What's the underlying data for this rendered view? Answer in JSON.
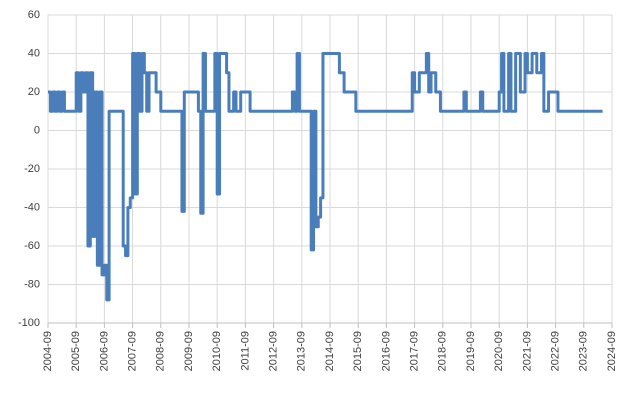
{
  "chart_data": {
    "type": "line",
    "step": "post",
    "grid": true,
    "series": [
      {
        "color": "#4a7ebb",
        "x": [
          "2004-09",
          "2004-10",
          "2004-11",
          "2004-12",
          "2005-01",
          "2005-02",
          "2005-03",
          "2005-04",
          "2005-09",
          "2005-10",
          "2005-11",
          "2005-12",
          "2006-01",
          "2006-02",
          "2006-03",
          "2006-04",
          "2006-05",
          "2006-06",
          "2006-07",
          "2006-08",
          "2006-09",
          "2006-10",
          "2006-11",
          "2007-05",
          "2007-06",
          "2007-07",
          "2007-08",
          "2007-09",
          "2007-10",
          "2007-11",
          "2007-12",
          "2008-01",
          "2008-02",
          "2008-03",
          "2008-04",
          "2008-07",
          "2008-09",
          "2009-06",
          "2009-07",
          "2010-01",
          "2010-02",
          "2010-03",
          "2010-04",
          "2010-08",
          "2010-09",
          "2010-10",
          "2011-01",
          "2011-02",
          "2011-04",
          "2011-05",
          "2011-07",
          "2011-11",
          "2013-05",
          "2013-06",
          "2013-07",
          "2013-08",
          "2014-01",
          "2014-02",
          "2014-03",
          "2014-04",
          "2014-05",
          "2014-06",
          "2015-01",
          "2015-03",
          "2015-08",
          "2017-08",
          "2017-09",
          "2017-11",
          "2018-02",
          "2018-03",
          "2018-04",
          "2018-06",
          "2018-08",
          "2019-06",
          "2019-07",
          "2020-01",
          "2020-02",
          "2020-09",
          "2020-10",
          "2020-11",
          "2021-01",
          "2021-02",
          "2021-04",
          "2021-06",
          "2021-08",
          "2021-09",
          "2021-11",
          "2022-01",
          "2022-03",
          "2022-04",
          "2022-06",
          "2022-10",
          "2024-05"
        ],
        "values": [
          20,
          10,
          20,
          10,
          20,
          10,
          20,
          10,
          30,
          10,
          30,
          20,
          30,
          -60,
          30,
          -55,
          20,
          -70,
          20,
          -75,
          -70,
          -88,
          10,
          -60,
          -65,
          -40,
          -35,
          40,
          -33,
          40,
          10,
          40,
          30,
          10,
          30,
          20,
          10,
          -42,
          20,
          10,
          -43,
          40,
          10,
          40,
          -33,
          40,
          30,
          10,
          20,
          10,
          20,
          10,
          20,
          10,
          40,
          10,
          -62,
          10,
          -50,
          -45,
          -35,
          40,
          30,
          20,
          10,
          30,
          20,
          30,
          40,
          20,
          30,
          20,
          10,
          20,
          10,
          20,
          10,
          20,
          40,
          10,
          40,
          10,
          40,
          20,
          40,
          30,
          40,
          30,
          40,
          10,
          20,
          10,
          10
        ]
      }
    ],
    "ylim": [
      -100,
      60
    ],
    "yticks": [
      -100,
      -80,
      -60,
      -40,
      -20,
      0,
      20,
      40,
      60
    ],
    "xlim": [
      "2004-09",
      "2024-09"
    ],
    "xticks": [
      "2004-09",
      "2005-09",
      "2006-09",
      "2007-09",
      "2008-09",
      "2009-09",
      "2010-09",
      "2011-09",
      "2012-09",
      "2013-09",
      "2014-09",
      "2015-09",
      "2016-09",
      "2017-09",
      "2018-09",
      "2019-09",
      "2020-09",
      "2021-09",
      "2022-09",
      "2023-09",
      "2024-09"
    ]
  }
}
